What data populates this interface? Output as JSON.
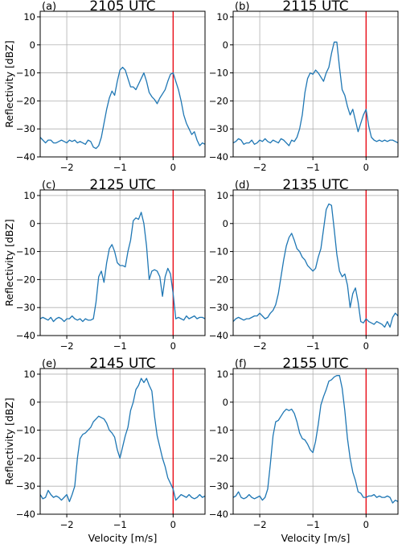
{
  "chart_data": [
    {
      "type": "line",
      "panel_label": "(a)",
      "title": "2105 UTC",
      "ylabel": "Reflectivity [dBZ]",
      "xlabel": "",
      "xlim": [
        -2.5,
        0.6
      ],
      "ylim": [
        -40,
        12
      ],
      "xticks": [
        -2,
        -1,
        0
      ],
      "xticklabels": [
        "−2",
        "−1",
        "0"
      ],
      "yticks": [
        10,
        0,
        -10,
        -20,
        -30,
        -40
      ],
      "yticklabels": [
        "10",
        "0",
        "−10",
        "−20",
        "−30",
        "−40"
      ],
      "grid": true,
      "line_color": "#1f77b4",
      "vline": {
        "x": 0,
        "color": "#e8000b"
      },
      "series": [
        {
          "x": [
            -2.5,
            -2.45,
            -2.4,
            -2.35,
            -2.3,
            -2.25,
            -2.2,
            -2.15,
            -2.1,
            -2.05,
            -2.0,
            -1.95,
            -1.9,
            -1.85,
            -1.8,
            -1.75,
            -1.7,
            -1.65,
            -1.6,
            -1.55,
            -1.5,
            -1.45,
            -1.4,
            -1.35,
            -1.3,
            -1.25,
            -1.2,
            -1.15,
            -1.1,
            -1.05,
            -1.0,
            -0.95,
            -0.9,
            -0.85,
            -0.8,
            -0.75,
            -0.7,
            -0.65,
            -0.6,
            -0.55,
            -0.5,
            -0.45,
            -0.4,
            -0.35,
            -0.3,
            -0.25,
            -0.2,
            -0.15,
            -0.1,
            -0.05,
            0.0,
            0.05,
            0.1,
            0.15,
            0.2,
            0.25,
            0.3,
            0.35,
            0.4,
            0.45,
            0.5,
            0.55,
            0.6
          ],
          "y": [
            -33,
            -34,
            -35,
            -34,
            -34,
            -35,
            -35,
            -34.5,
            -34,
            -34.5,
            -35,
            -34,
            -34.5,
            -34,
            -35,
            -34.5,
            -35,
            -35.5,
            -34,
            -34.5,
            -36.5,
            -37,
            -36,
            -33,
            -28,
            -23,
            -19,
            -16.5,
            -18,
            -13,
            -9,
            -8,
            -9,
            -12,
            -15,
            -15,
            -16,
            -14,
            -12,
            -10,
            -13,
            -17,
            -18.5,
            -19.5,
            -21,
            -19,
            -17.5,
            -16,
            -13,
            -10.5,
            -10,
            -13,
            -16,
            -20,
            -25,
            -28,
            -30,
            -32,
            -31,
            -34,
            -36,
            -35,
            -35.5
          ]
        }
      ]
    },
    {
      "type": "line",
      "panel_label": "(b)",
      "title": "2115 UTC",
      "ylabel": "",
      "xlabel": "",
      "xlim": [
        -2.5,
        0.6
      ],
      "ylim": [
        -40,
        12
      ],
      "xticks": [
        -2,
        -1,
        0
      ],
      "xticklabels": [
        "−2",
        "−1",
        "0"
      ],
      "yticks": [
        10,
        0,
        -10,
        -20,
        -30,
        -40
      ],
      "yticklabels": [
        "10",
        "0",
        "−10",
        "−20",
        "−30",
        "−40"
      ],
      "grid": true,
      "line_color": "#1f77b4",
      "vline": {
        "x": 0,
        "color": "#e8000b"
      },
      "series": [
        {
          "x": [
            -2.5,
            -2.45,
            -2.4,
            -2.35,
            -2.3,
            -2.25,
            -2.2,
            -2.15,
            -2.1,
            -2.05,
            -2.0,
            -1.95,
            -1.9,
            -1.85,
            -1.8,
            -1.75,
            -1.7,
            -1.65,
            -1.6,
            -1.55,
            -1.5,
            -1.45,
            -1.4,
            -1.35,
            -1.3,
            -1.25,
            -1.2,
            -1.15,
            -1.1,
            -1.05,
            -1.0,
            -0.95,
            -0.9,
            -0.85,
            -0.8,
            -0.75,
            -0.7,
            -0.65,
            -0.6,
            -0.55,
            -0.5,
            -0.45,
            -0.4,
            -0.35,
            -0.3,
            -0.25,
            -0.2,
            -0.15,
            -0.1,
            -0.05,
            0.0,
            0.05,
            0.1,
            0.15,
            0.2,
            0.25,
            0.3,
            0.35,
            0.4,
            0.45,
            0.5,
            0.55,
            0.6
          ],
          "y": [
            -35,
            -34.5,
            -33.5,
            -34,
            -35.5,
            -35,
            -35,
            -34,
            -35.5,
            -35,
            -34,
            -34.5,
            -33.5,
            -34.5,
            -35,
            -34,
            -34.5,
            -35,
            -33.5,
            -34,
            -35,
            -36,
            -34,
            -34.5,
            -33,
            -30,
            -25,
            -17,
            -12,
            -10,
            -10.5,
            -9,
            -10,
            -11.5,
            -13,
            -10,
            -8,
            -3,
            1,
            1,
            -8,
            -16,
            -18,
            -22,
            -25,
            -23,
            -27,
            -31,
            -28,
            -25,
            -23,
            -29,
            -33,
            -34,
            -34.5,
            -34,
            -34.5,
            -34,
            -34.5,
            -34,
            -34,
            -34.5,
            -35
          ]
        }
      ]
    },
    {
      "type": "line",
      "panel_label": "(c)",
      "title": "2125 UTC",
      "ylabel": "Reflectivity [dBZ]",
      "xlabel": "",
      "xlim": [
        -2.5,
        0.6
      ],
      "ylim": [
        -40,
        12
      ],
      "xticks": [
        -2,
        -1,
        0
      ],
      "xticklabels": [
        "−2",
        "−1",
        "0"
      ],
      "yticks": [
        10,
        0,
        -10,
        -20,
        -30,
        -40
      ],
      "yticklabels": [
        "10",
        "0",
        "−10",
        "−20",
        "−30",
        "−40"
      ],
      "grid": true,
      "line_color": "#1f77b4",
      "vline": {
        "x": 0,
        "color": "#e8000b"
      },
      "series": [
        {
          "x": [
            -2.5,
            -2.45,
            -2.4,
            -2.35,
            -2.3,
            -2.25,
            -2.2,
            -2.15,
            -2.1,
            -2.05,
            -2.0,
            -1.95,
            -1.9,
            -1.85,
            -1.8,
            -1.75,
            -1.7,
            -1.65,
            -1.6,
            -1.55,
            -1.5,
            -1.45,
            -1.4,
            -1.35,
            -1.3,
            -1.25,
            -1.2,
            -1.15,
            -1.1,
            -1.05,
            -1.0,
            -0.95,
            -0.9,
            -0.85,
            -0.8,
            -0.75,
            -0.7,
            -0.65,
            -0.6,
            -0.55,
            -0.5,
            -0.45,
            -0.4,
            -0.35,
            -0.3,
            -0.25,
            -0.2,
            -0.15,
            -0.1,
            -0.05,
            0.0,
            0.05,
            0.1,
            0.15,
            0.2,
            0.25,
            0.3,
            0.35,
            0.4,
            0.45,
            0.5,
            0.55,
            0.6
          ],
          "y": [
            -34,
            -33.5,
            -34,
            -34.5,
            -33.5,
            -35,
            -34,
            -33.5,
            -34,
            -35,
            -34,
            -34,
            -33,
            -34,
            -34.5,
            -34,
            -35,
            -34,
            -34.5,
            -34.5,
            -34,
            -28,
            -19,
            -17,
            -21,
            -14,
            -9,
            -7.5,
            -10,
            -14,
            -15,
            -15,
            -15.5,
            -10,
            -6,
            1,
            2,
            1.5,
            4,
            0,
            -8,
            -20,
            -17,
            -16.5,
            -17,
            -19,
            -26,
            -19,
            -16,
            -18,
            -25,
            -34,
            -33.5,
            -34,
            -34.5,
            -33,
            -34,
            -33.5,
            -33,
            -34,
            -33.5,
            -33.5,
            -34
          ]
        }
      ]
    },
    {
      "type": "line",
      "panel_label": "(d)",
      "title": "2135 UTC",
      "ylabel": "",
      "xlabel": "",
      "xlim": [
        -2.5,
        0.6
      ],
      "ylim": [
        -40,
        12
      ],
      "xticks": [
        -2,
        -1,
        0
      ],
      "xticklabels": [
        "−2",
        "−1",
        "0"
      ],
      "yticks": [
        10,
        0,
        -10,
        -20,
        -30,
        -40
      ],
      "yticklabels": [
        "10",
        "0",
        "−10",
        "−20",
        "−30",
        "−40"
      ],
      "grid": true,
      "line_color": "#1f77b4",
      "vline": {
        "x": 0,
        "color": "#e8000b"
      },
      "series": [
        {
          "x": [
            -2.5,
            -2.45,
            -2.4,
            -2.35,
            -2.3,
            -2.25,
            -2.2,
            -2.15,
            -2.1,
            -2.05,
            -2.0,
            -1.95,
            -1.9,
            -1.85,
            -1.8,
            -1.75,
            -1.7,
            -1.65,
            -1.6,
            -1.55,
            -1.5,
            -1.45,
            -1.4,
            -1.35,
            -1.3,
            -1.25,
            -1.2,
            -1.15,
            -1.1,
            -1.05,
            -1.0,
            -0.95,
            -0.9,
            -0.85,
            -0.8,
            -0.75,
            -0.7,
            -0.65,
            -0.6,
            -0.55,
            -0.5,
            -0.45,
            -0.4,
            -0.35,
            -0.3,
            -0.25,
            -0.2,
            -0.15,
            -0.1,
            -0.05,
            0.0,
            0.05,
            0.1,
            0.15,
            0.2,
            0.25,
            0.3,
            0.35,
            0.4,
            0.45,
            0.5,
            0.55,
            0.6
          ],
          "y": [
            -35,
            -34,
            -33.5,
            -34,
            -34.5,
            -34,
            -34,
            -33.5,
            -33,
            -33,
            -32,
            -33,
            -34,
            -33.5,
            -32,
            -31,
            -29,
            -25,
            -19,
            -13,
            -8,
            -5,
            -3.5,
            -6,
            -9,
            -10,
            -12,
            -13,
            -15,
            -16,
            -17,
            -16,
            -12,
            -9,
            -2,
            5,
            7,
            6.5,
            -2,
            -11,
            -17,
            -19,
            -18,
            -22,
            -30,
            -25,
            -23,
            -28,
            -35,
            -35.5,
            -34,
            -35,
            -35.5,
            -36,
            -35,
            -35.5,
            -36,
            -37,
            -35,
            -37,
            -33.5,
            -32,
            -33
          ]
        }
      ]
    },
    {
      "type": "line",
      "panel_label": "(e)",
      "title": "2145 UTC",
      "ylabel": "Reflectivity [dBZ]",
      "xlabel": "Velocity [m/s]",
      "xlim": [
        -2.5,
        0.6
      ],
      "ylim": [
        -40,
        12
      ],
      "xticks": [
        -2,
        -1,
        0
      ],
      "xticklabels": [
        "−2",
        "−1",
        "0"
      ],
      "yticks": [
        10,
        0,
        -10,
        -20,
        -30,
        -40
      ],
      "yticklabels": [
        "10",
        "0",
        "−10",
        "−20",
        "−30",
        "−40"
      ],
      "grid": true,
      "line_color": "#1f77b4",
      "vline": {
        "x": 0,
        "color": "#e8000b"
      },
      "series": [
        {
          "x": [
            -2.5,
            -2.45,
            -2.4,
            -2.35,
            -2.3,
            -2.25,
            -2.2,
            -2.15,
            -2.1,
            -2.05,
            -2.0,
            -1.95,
            -1.9,
            -1.85,
            -1.8,
            -1.75,
            -1.7,
            -1.65,
            -1.6,
            -1.55,
            -1.5,
            -1.45,
            -1.4,
            -1.35,
            -1.3,
            -1.25,
            -1.2,
            -1.15,
            -1.1,
            -1.05,
            -1.0,
            -0.95,
            -0.9,
            -0.85,
            -0.8,
            -0.75,
            -0.7,
            -0.65,
            -0.6,
            -0.55,
            -0.5,
            -0.45,
            -0.4,
            -0.35,
            -0.3,
            -0.25,
            -0.2,
            -0.15,
            -0.1,
            -0.05,
            0.0,
            0.05,
            0.1,
            0.15,
            0.2,
            0.25,
            0.3,
            0.35,
            0.4,
            0.45,
            0.5,
            0.55,
            0.6
          ],
          "y": [
            -33,
            -34.5,
            -34,
            -31.5,
            -33,
            -34,
            -33.5,
            -34,
            -35,
            -34,
            -33,
            -35.5,
            -33,
            -30,
            -20,
            -13,
            -11.5,
            -11,
            -10,
            -9,
            -7,
            -6,
            -5,
            -5.5,
            -6,
            -7.5,
            -10,
            -11,
            -12.5,
            -17,
            -20,
            -16,
            -12,
            -9,
            -3,
            0,
            4.5,
            6,
            8.5,
            7,
            8.5,
            6,
            4,
            -5,
            -12,
            -16,
            -20,
            -23,
            -27,
            -29,
            -31,
            -35,
            -34,
            -33,
            -33.5,
            -34,
            -33,
            -34,
            -34.5,
            -34,
            -33,
            -34,
            -33.5
          ]
        }
      ]
    },
    {
      "type": "line",
      "panel_label": "(f)",
      "title": "2155 UTC",
      "ylabel": "",
      "xlabel": "Velocity [m/s]",
      "xlim": [
        -2.5,
        0.6
      ],
      "ylim": [
        -40,
        12
      ],
      "xticks": [
        -2,
        -1,
        0
      ],
      "xticklabels": [
        "−2",
        "−1",
        "0"
      ],
      "yticks": [
        10,
        0,
        -10,
        -20,
        -30,
        -40
      ],
      "yticklabels": [
        "10",
        "0",
        "−10",
        "−20",
        "−30",
        "−40"
      ],
      "grid": true,
      "line_color": "#1f77b4",
      "vline": {
        "x": 0,
        "color": "#e8000b"
      },
      "series": [
        {
          "x": [
            -2.5,
            -2.45,
            -2.4,
            -2.35,
            -2.3,
            -2.25,
            -2.2,
            -2.15,
            -2.1,
            -2.05,
            -2.0,
            -1.95,
            -1.9,
            -1.85,
            -1.8,
            -1.75,
            -1.7,
            -1.65,
            -1.6,
            -1.55,
            -1.5,
            -1.45,
            -1.4,
            -1.35,
            -1.3,
            -1.25,
            -1.2,
            -1.15,
            -1.1,
            -1.05,
            -1.0,
            -0.95,
            -0.9,
            -0.85,
            -0.8,
            -0.75,
            -0.7,
            -0.65,
            -0.6,
            -0.55,
            -0.5,
            -0.45,
            -0.4,
            -0.35,
            -0.3,
            -0.25,
            -0.2,
            -0.15,
            -0.1,
            -0.05,
            0.0,
            0.05,
            0.1,
            0.15,
            0.2,
            0.25,
            0.3,
            0.35,
            0.4,
            0.45,
            0.5,
            0.55,
            0.6
          ],
          "y": [
            -34,
            -33.5,
            -32,
            -34,
            -34.5,
            -34,
            -33,
            -34,
            -34.5,
            -34,
            -33.5,
            -35,
            -34,
            -31,
            -22,
            -12,
            -7,
            -6.5,
            -5,
            -3.5,
            -2.5,
            -3,
            -2.5,
            -4,
            -7,
            -11,
            -13,
            -13.5,
            -15,
            -17,
            -18,
            -14,
            -8,
            -1,
            2,
            4.5,
            7.5,
            8,
            9,
            9.5,
            9.5,
            5,
            -3,
            -13,
            -20,
            -25,
            -28,
            -32,
            -32.5,
            -34,
            -34,
            -33.5,
            -33.5,
            -33,
            -34,
            -33.5,
            -34,
            -34,
            -33.5,
            -34,
            -36,
            -35,
            -35.5
          ]
        }
      ]
    }
  ]
}
